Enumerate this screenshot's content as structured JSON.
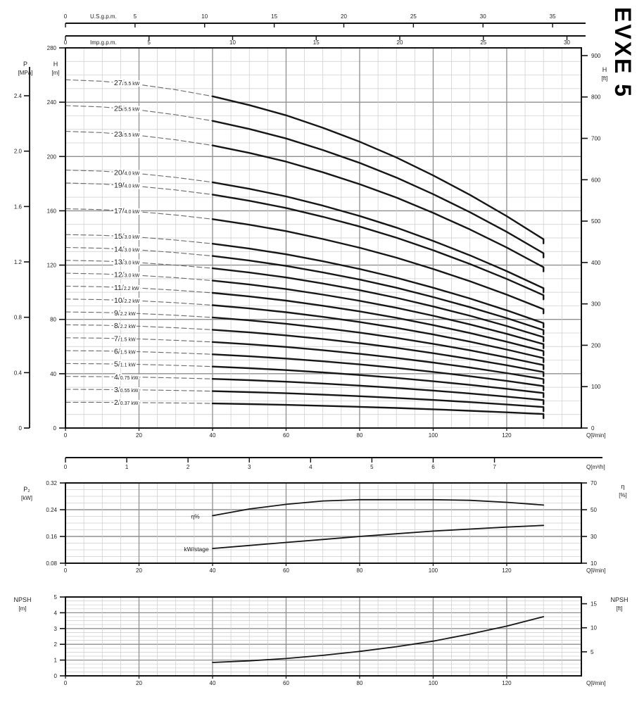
{
  "brand": "EVXE 5",
  "colors": {
    "background": "#ffffff",
    "frame": "#111111",
    "axis": "#111111",
    "text": "#222222",
    "curve": "#161616",
    "curve_dashed": "#6a6a6a",
    "grid_minor": "#cccccc",
    "grid_major": "#8f8f8f"
  },
  "chart_data": {
    "head": {
      "type": "line",
      "top_axes": {
        "us_gpm": {
          "name": "U.S.g.p.m.",
          "unit_lmin": 3.785,
          "ticks": [
            0,
            5,
            10,
            15,
            20,
            25,
            30,
            35
          ]
        },
        "imp_gpm": {
          "name": "Imp.g.p.m.",
          "unit_lmin": 4.546,
          "ticks": [
            0,
            5,
            10,
            15,
            20,
            25,
            30
          ]
        }
      },
      "x_axis": {
        "label": "Q[l/min]",
        "ticks": [
          0,
          20,
          40,
          60,
          80,
          100,
          120
        ],
        "minor_step": 5,
        "major_step": 20,
        "max": 140.3
      },
      "x_axis_m3h": {
        "label": "Q[m³/h]",
        "ticks": [
          0,
          1,
          2,
          3,
          4,
          5,
          6,
          7
        ],
        "unit_lmin": 16.667
      },
      "axes": {
        "pressure": {
          "title": "P",
          "unit": "[MPa]",
          "ticks": [
            0,
            0.4,
            0.8,
            1.2,
            1.6,
            2.0,
            2.4
          ],
          "tick_labels": [
            "0",
            "0.4",
            "0.8",
            "1.2",
            "1.6",
            "2.0",
            "2.4"
          ],
          "m_per_unit": 101.97
        },
        "head_m": {
          "title": "H",
          "unit": "[m]",
          "min": 0,
          "max": 280,
          "ticks": [
            0,
            40,
            80,
            120,
            160,
            200,
            240,
            280
          ],
          "minor_step": 10,
          "major_step": 40
        },
        "head_ft": {
          "title": "H",
          "unit": "[ft]",
          "ticks": [
            0,
            100,
            200,
            300,
            400,
            500,
            600,
            700,
            800,
            900
          ],
          "m_per_unit": 0.3048
        }
      },
      "q_lmin": [
        0,
        10,
        20,
        30,
        40,
        50,
        60,
        70,
        80,
        90,
        100,
        110,
        120,
        130
      ],
      "per_stage_head_m": [
        9.5,
        9.46,
        9.37,
        9.23,
        9.05,
        8.81,
        8.53,
        8.19,
        7.81,
        7.38,
        6.89,
        6.36,
        5.78,
        5.15
      ],
      "solid_from_q": 40,
      "curves": [
        {
          "stages": 27,
          "power": "5.5 kW"
        },
        {
          "stages": 25,
          "power": "5.5 kW"
        },
        {
          "stages": 23,
          "power": "5.5 kW"
        },
        {
          "stages": 20,
          "power": "4.0 kW"
        },
        {
          "stages": 19,
          "power": "4.0 kW"
        },
        {
          "stages": 17,
          "power": "4.0 kW"
        },
        {
          "stages": 15,
          "power": "3.0 kW"
        },
        {
          "stages": 14,
          "power": "3.0 kW"
        },
        {
          "stages": 13,
          "power": "3.0 kW"
        },
        {
          "stages": 12,
          "power": "3.0 kW"
        },
        {
          "stages": 11,
          "power": "2.2 kW"
        },
        {
          "stages": 10,
          "power": "2.2 kW"
        },
        {
          "stages": 9,
          "power": "2.2 kW"
        },
        {
          "stages": 8,
          "power": "2.2 kW"
        },
        {
          "stages": 7,
          "power": "1.5 kW"
        },
        {
          "stages": 6,
          "power": "1.5 kW"
        },
        {
          "stages": 5,
          "power": "1.1 kW"
        },
        {
          "stages": 4,
          "power": "0.75 kW"
        },
        {
          "stages": 3,
          "power": "0.55 kW"
        },
        {
          "stages": 2,
          "power": "0.37 kW"
        }
      ]
    },
    "power": {
      "type": "line",
      "axes": {
        "left": {
          "title": "P₂",
          "unit": "[kW]",
          "min": 0.08,
          "max": 0.32,
          "ticks": [
            0.08,
            0.16,
            0.24,
            0.32
          ],
          "tick_labels": [
            "0.08",
            "0.16",
            "0.24",
            "0.32"
          ],
          "minor_step": 0.02
        },
        "right": {
          "title": "η",
          "unit": "[%]",
          "min": 10,
          "max": 70,
          "ticks": [
            10,
            30,
            50,
            70
          ],
          "tick_labels": [
            "10",
            "30",
            "50",
            "70"
          ]
        }
      },
      "x_axis": {
        "label": "Q[l/min]",
        "ticks": [
          0,
          20,
          40,
          60,
          80,
          100,
          120
        ]
      },
      "series": [
        {
          "name": "η%",
          "axis": "right",
          "q": [
            40,
            50,
            60,
            70,
            80,
            90,
            100,
            110,
            120,
            130
          ],
          "values": [
            45.5,
            50.5,
            54,
            56.5,
            57.5,
            57.5,
            57.5,
            57,
            55.5,
            53.5
          ]
        },
        {
          "name": "kW/stage",
          "axis": "left",
          "q": [
            40,
            50,
            60,
            70,
            80,
            90,
            100,
            110,
            120,
            130
          ],
          "values": [
            0.124,
            0.133,
            0.142,
            0.151,
            0.16,
            0.168,
            0.176,
            0.182,
            0.188,
            0.193
          ]
        }
      ]
    },
    "npsh": {
      "type": "line",
      "axes": {
        "left": {
          "title": "NPSH",
          "unit": "[m]",
          "min": 0,
          "max": 5,
          "ticks": [
            0,
            1,
            2,
            3,
            4,
            5
          ],
          "minor_step": 0.25
        },
        "right": {
          "title": "NPSH",
          "unit": "[ft]",
          "ticks": [
            5,
            10,
            15
          ],
          "m_per_unit": 0.3048
        }
      },
      "x_axis": {
        "label": "Q[l/min]",
        "ticks": [
          0,
          20,
          40,
          60,
          80,
          100,
          120
        ]
      },
      "series": [
        {
          "name": "NPSH",
          "q": [
            40,
            50,
            60,
            70,
            80,
            90,
            100,
            110,
            120,
            130
          ],
          "values": [
            0.85,
            0.95,
            1.1,
            1.3,
            1.55,
            1.85,
            2.2,
            2.65,
            3.15,
            3.75
          ]
        }
      ]
    }
  }
}
